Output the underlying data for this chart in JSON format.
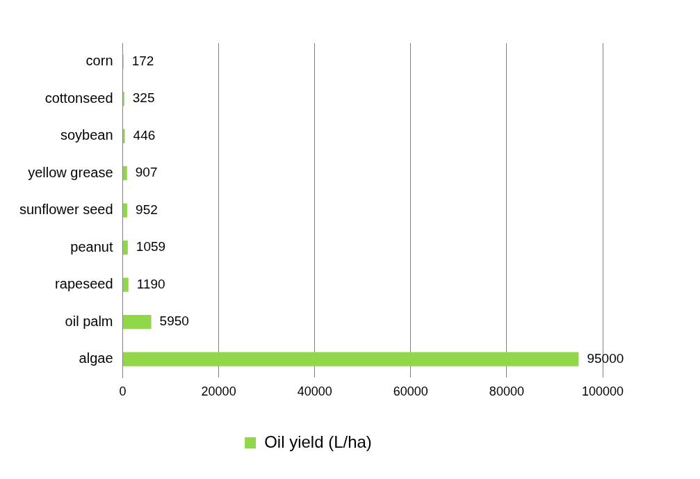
{
  "chart_data": {
    "type": "bar",
    "orientation": "horizontal",
    "categories": [
      "corn",
      "cottonseed",
      "soybean",
      "yellow grease",
      "sunflower seed",
      "peanut",
      "rapeseed",
      "oil palm",
      "algae"
    ],
    "series": [
      {
        "name": "Oil yield (L/ha)",
        "color": "#92d64a",
        "values": [
          172,
          325,
          446,
          907,
          952,
          1059,
          1190,
          5950,
          95000
        ]
      }
    ],
    "xlim": [
      0,
      100000
    ],
    "xticks": [
      0,
      20000,
      40000,
      60000,
      80000,
      100000
    ],
    "grid": "x",
    "legend": "bottom",
    "data_labels": true
  }
}
